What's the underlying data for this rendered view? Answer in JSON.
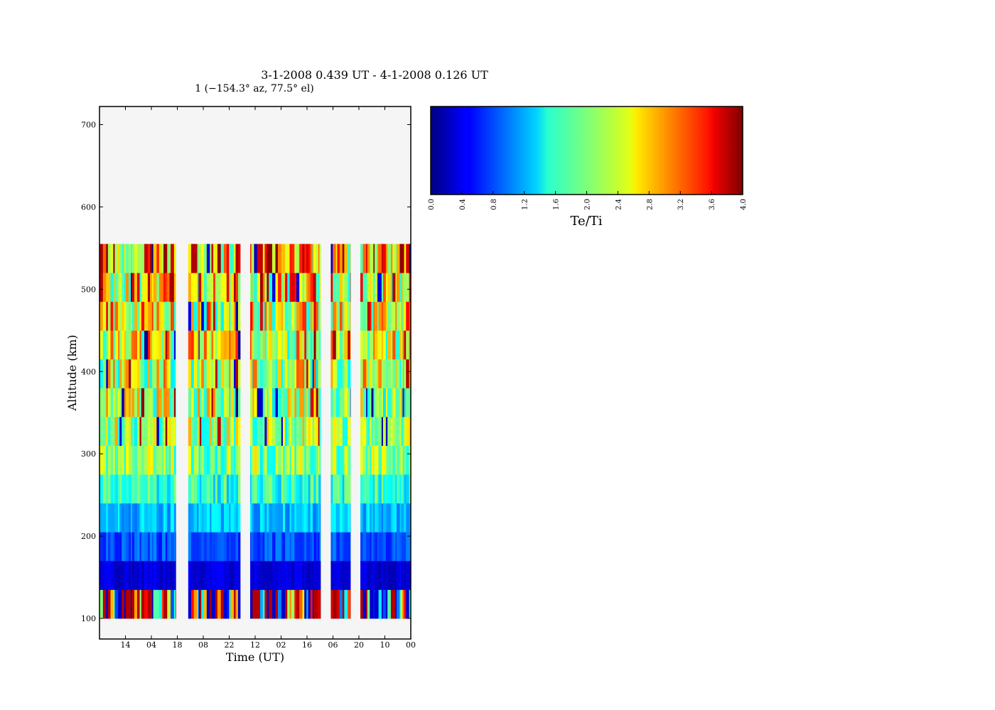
{
  "chart_data": {
    "type": "heatmap",
    "title": "3-1-2008 0.439 UT - 4-1-2008 0.126 UT",
    "subtitle": "1 (−154.3° az, 77.5° el)",
    "xlabel": "Time (UT)",
    "ylabel": "Altitude (km)",
    "x_tick_labels": [
      "14",
      "04",
      "18",
      "08",
      "22",
      "12",
      "02",
      "16",
      "06",
      "20",
      "10",
      "00"
    ],
    "y_ticks": [
      100,
      200,
      300,
      400,
      500,
      600,
      700
    ],
    "ylim": [
      75,
      722
    ],
    "altitude_bin_edges_km": [
      100,
      135,
      170,
      205,
      240,
      275,
      310,
      345,
      380,
      415,
      450,
      485,
      520,
      555
    ],
    "time_axis_fraction_range": [
      0,
      1
    ],
    "data_segments_time_fraction": [
      [
        0.0,
        0.245
      ],
      [
        0.285,
        0.452
      ],
      [
        0.484,
        0.71
      ],
      [
        0.743,
        0.806
      ],
      [
        0.838,
        1.0
      ]
    ],
    "typical_value_by_altitude_bin": [
      2.0,
      0.35,
      0.8,
      1.25,
      1.65,
      2.05,
      2.15,
      2.2,
      2.3,
      2.45,
      2.55,
      2.7,
      2.85
    ],
    "value_spread_by_altitude_bin": [
      1.9,
      0.15,
      0.25,
      0.3,
      0.45,
      0.6,
      0.7,
      0.8,
      0.9,
      1.0,
      1.1,
      1.2,
      1.2
    ],
    "colorbar": {
      "label": "Te/Ti",
      "min": 0.0,
      "max": 4.0,
      "tick_labels": [
        "0.0",
        "0.4",
        "0.8",
        "1.2",
        "1.6",
        "2.0",
        "2.4",
        "2.8",
        "3.2",
        "3.6",
        "4.0"
      ]
    },
    "colormap": "jet",
    "missing_data_color": "#f5f5f5",
    "grid": false
  }
}
